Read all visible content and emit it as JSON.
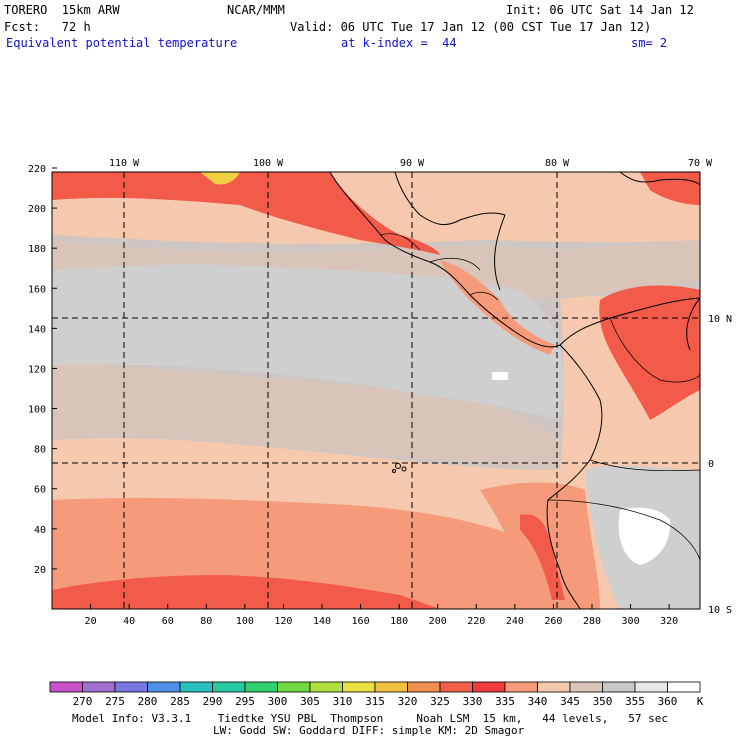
{
  "header": {
    "model": "TORERO  15km ARW",
    "org": "NCAR/MMM",
    "init": "Init: 06 UTC Sat 14 Jan 12",
    "fcst": "Fcst:   72 h",
    "valid": "Valid: 06 UTC Tue 17 Jan 12 (00 CST Tue 17 Jan 12)",
    "field": "Equivalent potential temperature",
    "level": "at k-index =  44",
    "smooth": "sm= 2"
  },
  "map": {
    "top_lon_labels": [
      "110 W",
      "100 W",
      "90 W",
      "80 W",
      "70 W"
    ],
    "left_ticks": [
      "220",
      "200",
      "180",
      "160",
      "140",
      "120",
      "100",
      "80",
      "60",
      "40",
      "20"
    ],
    "bottom_ticks": [
      "20",
      "40",
      "60",
      "80",
      "100",
      "120",
      "140",
      "160",
      "180",
      "200",
      "220",
      "240",
      "260",
      "280",
      "300",
      "320"
    ],
    "right_lat_labels": [
      "10 N",
      "0",
      "10 S"
    ],
    "colors": {
      "c335": "#f25a4a",
      "c330": "#ee4a3e",
      "c325": "#f59a7a",
      "c340": "#f6c8ae",
      "c345": "#d8c4b8",
      "c350": "#cdc6c3",
      "c355": "#cfcfcf",
      "c360": "#ffffff",
      "c310": "#f0d040",
      "coast": "#000000"
    }
  },
  "legend": {
    "values": [
      "270",
      "275",
      "280",
      "285",
      "290",
      "295",
      "300",
      "305",
      "310",
      "315",
      "320",
      "325",
      "330",
      "335",
      "340",
      "345",
      "350",
      "355",
      "360"
    ],
    "unit": "K",
    "colors": [
      "#c850c8",
      "#a070d0",
      "#7878e0",
      "#5090e8",
      "#28c0c0",
      "#28c8a0",
      "#30d070",
      "#70d840",
      "#b0e040",
      "#e8e040",
      "#f0c040",
      "#f09050",
      "#f06048",
      "#f03c3c",
      "#f59a7a",
      "#f6c8ae",
      "#d8c4b8",
      "#c8c8c8",
      "#e8e8e8",
      "#ffffff"
    ]
  },
  "footer": {
    "line1": "Model Info: V3.3.1    Tiedtke YSU PBL  Thompson     Noah LSM  15 km,   44 levels,   57 sec",
    "line2": "LW: Godd SW: Goddard DIFF: simple KM: 2D Smagor"
  }
}
